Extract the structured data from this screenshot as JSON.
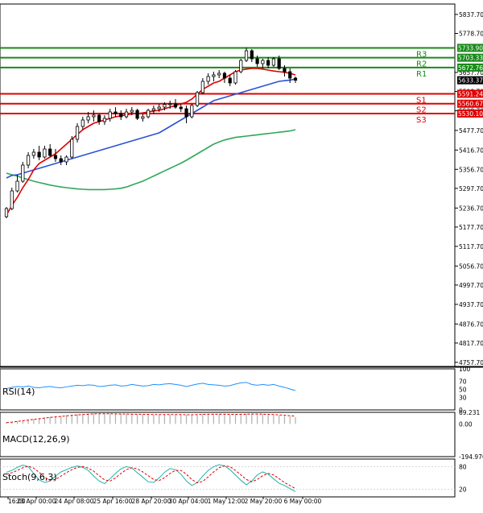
{
  "chart_data": [
    {
      "type": "candlestick",
      "panel": "price",
      "y_ticks": [
        "5837.70",
        "5778.70",
        "5657.70",
        "5598.70",
        "5538.70",
        "5477.70",
        "5416.70",
        "5356.70",
        "5297.70",
        "5236.70",
        "5177.70",
        "5117.70",
        "5056.70",
        "4997.70",
        "4937.70",
        "4876.70",
        "4817.70",
        "4757.70"
      ],
      "ylim": [
        4745,
        5870
      ],
      "x_labels": [
        "16:00",
        "23 Apr 00:00",
        "24 Apr 08:00",
        "25 Apr 16:00",
        "28 Apr 20:00",
        "30 Apr 04:00",
        "1 May 12:00",
        "2 May 20:00",
        "6 May 00:00"
      ],
      "current_price": "5633.37",
      "levels": [
        {
          "name": "R3",
          "value": 5733.9,
          "label": "5733.90",
          "color": "#1a8a1a"
        },
        {
          "name": "R2",
          "value": 5703.33,
          "label": "5703.33",
          "color": "#1a8a1a"
        },
        {
          "name": "R1",
          "value": 5672.76,
          "label": "5672.76",
          "color": "#1a8a1a"
        },
        {
          "name": "S1",
          "value": 5591.24,
          "label": "5591.24",
          "color": "#e00000"
        },
        {
          "name": "S2",
          "value": 5560.67,
          "label": "5560.67",
          "color": "#e00000"
        },
        {
          "name": "S3",
          "value": 5530.1,
          "label": "5530.10",
          "color": "#e00000"
        }
      ],
      "candles": [
        [
          5210,
          5240,
          5205,
          5235
        ],
        [
          5235,
          5300,
          5230,
          5290
        ],
        [
          5290,
          5340,
          5285,
          5320
        ],
        [
          5320,
          5380,
          5315,
          5370
        ],
        [
          5370,
          5410,
          5360,
          5400
        ],
        [
          5400,
          5420,
          5390,
          5410
        ],
        [
          5410,
          5430,
          5385,
          5395
        ],
        [
          5395,
          5430,
          5390,
          5420
        ],
        [
          5420,
          5435,
          5395,
          5400
        ],
        [
          5400,
          5420,
          5380,
          5390
        ],
        [
          5390,
          5400,
          5370,
          5380
        ],
        [
          5380,
          5400,
          5370,
          5395
        ],
        [
          5395,
          5460,
          5390,
          5450
        ],
        [
          5450,
          5500,
          5440,
          5490
        ],
        [
          5490,
          5520,
          5480,
          5510
        ],
        [
          5510,
          5535,
          5500,
          5520
        ],
        [
          5520,
          5540,
          5505,
          5525
        ],
        [
          5525,
          5530,
          5495,
          5505
        ],
        [
          5505,
          5525,
          5495,
          5515
        ],
        [
          5515,
          5545,
          5505,
          5535
        ],
        [
          5535,
          5550,
          5520,
          5530
        ],
        [
          5530,
          5540,
          5510,
          5520
        ],
        [
          5520,
          5545,
          5515,
          5535
        ],
        [
          5535,
          5550,
          5525,
          5540
        ],
        [
          5540,
          5545,
          5510,
          5515
        ],
        [
          5515,
          5530,
          5505,
          5520
        ],
        [
          5520,
          5545,
          5515,
          5540
        ],
        [
          5540,
          5555,
          5530,
          5545
        ],
        [
          5545,
          5560,
          5535,
          5550
        ],
        [
          5550,
          5565,
          5540,
          5558
        ],
        [
          5558,
          5570,
          5545,
          5560
        ],
        [
          5560,
          5575,
          5545,
          5550
        ],
        [
          5550,
          5560,
          5535,
          5545
        ],
        [
          5545,
          5555,
          5500,
          5520
        ],
        [
          5520,
          5560,
          5515,
          5555
        ],
        [
          5555,
          5600,
          5550,
          5595
        ],
        [
          5595,
          5640,
          5590,
          5630
        ],
        [
          5630,
          5655,
          5620,
          5645
        ],
        [
          5645,
          5660,
          5630,
          5650
        ],
        [
          5650,
          5665,
          5640,
          5655
        ],
        [
          5655,
          5660,
          5625,
          5640
        ],
        [
          5640,
          5650,
          5615,
          5625
        ],
        [
          5625,
          5665,
          5620,
          5660
        ],
        [
          5660,
          5700,
          5655,
          5695
        ],
        [
          5695,
          5735,
          5690,
          5725
        ],
        [
          5725,
          5730,
          5690,
          5700
        ],
        [
          5700,
          5710,
          5675,
          5685
        ],
        [
          5685,
          5700,
          5670,
          5695
        ],
        [
          5695,
          5705,
          5670,
          5680
        ],
        [
          5680,
          5705,
          5675,
          5700
        ],
        [
          5700,
          5710,
          5665,
          5670
        ],
        [
          5670,
          5680,
          5645,
          5660
        ],
        [
          5660,
          5670,
          5625,
          5640
        ],
        [
          5640,
          5645,
          5625,
          5633.37
        ]
      ],
      "ma_fast_color": "#e00000",
      "ma_mid_color": "#2a52d6",
      "ma_slow_color": "#2ea85a",
      "ma_fast": [
        5215,
        5245,
        5270,
        5300,
        5325,
        5355,
        5375,
        5385,
        5395,
        5405,
        5420,
        5435,
        5450,
        5465,
        5480,
        5490,
        5500,
        5505,
        5510,
        5515,
        5520,
        5523,
        5526,
        5529,
        5530,
        5532,
        5535,
        5538,
        5540,
        5545,
        5550,
        5555,
        5560,
        5565,
        5575,
        5590,
        5605,
        5615,
        5625,
        5630,
        5640,
        5650,
        5660,
        5665,
        5668,
        5670,
        5670,
        5668,
        5665,
        5662,
        5660,
        5658,
        5655,
        5650
      ],
      "ma_mid": [
        5330,
        5338,
        5340,
        5345,
        5350,
        5355,
        5360,
        5365,
        5370,
        5375,
        5380,
        5385,
        5390,
        5395,
        5400,
        5405,
        5410,
        5415,
        5420,
        5425,
        5430,
        5435,
        5440,
        5445,
        5450,
        5455,
        5460,
        5465,
        5470,
        5480,
        5490,
        5500,
        5510,
        5520,
        5530,
        5540,
        5550,
        5560,
        5570,
        5575,
        5580,
        5585,
        5590,
        5595,
        5600,
        5605,
        5610,
        5615,
        5620,
        5625,
        5630,
        5632,
        5634,
        5637
      ],
      "ma_slow": [
        5345,
        5340,
        5336,
        5330,
        5325,
        5320,
        5316,
        5312,
        5308,
        5305,
        5302,
        5300,
        5298,
        5296,
        5295,
        5294,
        5294,
        5294,
        5294,
        5295,
        5296,
        5298,
        5302,
        5308,
        5314,
        5320,
        5328,
        5336,
        5344,
        5352,
        5360,
        5368,
        5376,
        5385,
        5395,
        5405,
        5415,
        5425,
        5435,
        5442,
        5448,
        5452,
        5456,
        5458,
        5460,
        5462,
        5464,
        5466,
        5468,
        5470,
        5472,
        5474,
        5476,
        5480
      ]
    },
    {
      "type": "line",
      "panel": "rsi",
      "label": "RSI(14)",
      "y_ticks": [
        "100",
        "70",
        "50",
        "30",
        "0"
      ],
      "ylim": [
        0,
        100
      ],
      "color": "#1e90ff",
      "values": [
        52,
        55,
        57,
        56,
        58,
        55,
        54,
        56,
        57,
        55,
        54,
        56,
        58,
        60,
        59,
        61,
        60,
        57,
        58,
        60,
        61,
        58,
        59,
        62,
        60,
        58,
        59,
        62,
        61,
        63,
        64,
        62,
        60,
        57,
        60,
        63,
        65,
        62,
        61,
        60,
        58,
        59,
        63,
        66,
        67,
        62,
        60,
        62,
        60,
        62,
        58,
        55,
        51,
        47
      ]
    },
    {
      "type": "bar",
      "panel": "macd",
      "label": "MACD(12,26,9)",
      "y_ticks": [
        "69.231",
        "0.00",
        "-194.970"
      ],
      "ylim": [
        -194.97,
        69.231
      ],
      "bar_color": "#b0b0b0",
      "signal_color": "#e00000",
      "values": [
        10,
        14,
        18,
        22,
        26,
        30,
        34,
        38,
        42,
        45,
        48,
        52,
        55,
        58,
        60,
        62,
        63,
        63,
        62,
        61,
        60,
        59,
        58,
        58,
        57,
        56,
        56,
        55,
        55,
        56,
        57,
        57,
        56,
        55,
        55,
        57,
        59,
        60,
        60,
        59,
        58,
        57,
        57,
        58,
        60,
        61,
        60,
        58,
        56,
        54,
        51,
        48,
        44,
        40
      ],
      "signal": [
        8,
        11,
        15,
        19,
        23,
        27,
        31,
        35,
        39,
        42,
        45,
        48,
        51,
        54,
        56,
        58,
        60,
        61,
        61,
        61,
        60,
        59,
        59,
        58,
        58,
        57,
        57,
        56,
        56,
        56,
        56,
        56,
        56,
        55,
        55,
        56,
        57,
        58,
        58,
        58,
        58,
        57,
        57,
        57,
        58,
        59,
        59,
        58,
        57,
        56,
        54,
        52,
        49,
        46
      ]
    },
    {
      "type": "line",
      "panel": "stoch",
      "label": "Stoch(9,6,3)",
      "y_ticks": [
        "80",
        "20"
      ],
      "ylim": [
        0,
        100
      ],
      "main_color": "#20b2aa",
      "signal_color": "#e00000",
      "main": [
        65,
        70,
        78,
        84,
        80,
        62,
        45,
        38,
        42,
        55,
        66,
        72,
        78,
        82,
        78,
        70,
        55,
        42,
        35,
        48,
        62,
        74,
        80,
        76,
        64,
        52,
        40,
        38,
        50,
        65,
        75,
        72,
        60,
        42,
        30,
        38,
        55,
        70,
        80,
        85,
        82,
        72,
        58,
        44,
        32,
        42,
        58,
        66,
        60,
        48,
        36,
        30,
        22,
        14
      ],
      "signal": [
        60,
        64,
        70,
        77,
        81,
        76,
        65,
        52,
        44,
        46,
        55,
        64,
        72,
        78,
        80,
        76,
        68,
        56,
        45,
        42,
        50,
        62,
        72,
        77,
        74,
        66,
        56,
        46,
        43,
        51,
        62,
        70,
        70,
        60,
        46,
        37,
        41,
        53,
        66,
        77,
        82,
        80,
        70,
        58,
        46,
        40,
        46,
        56,
        62,
        58,
        48,
        38,
        30,
        22
      ]
    }
  ]
}
